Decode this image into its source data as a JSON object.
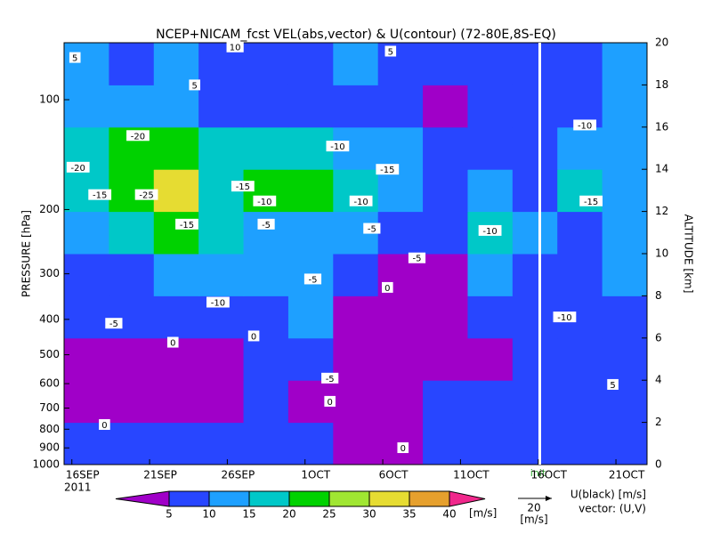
{
  "chart_data": {
    "type": "heatmap",
    "title": "NCEP+NICAM_fcst VEL(abs,vector) & U(contour)  (72-80E,8S-EQ)",
    "ylabel": "PRESSURE [hPa]",
    "y2label": "ALTITUDE [km]",
    "year_label": "2011",
    "xlim": [
      0.5,
      38
    ],
    "xticks": [
      {
        "value": 1,
        "label": "16SEP"
      },
      {
        "value": 6,
        "label": "21SEP"
      },
      {
        "value": 11,
        "label": "26SEP"
      },
      {
        "value": 16,
        "label": "1OCT"
      },
      {
        "value": 21,
        "label": "6OCT"
      },
      {
        "value": 26,
        "label": "11OCT"
      },
      {
        "value": 31,
        "label": "16OCT"
      },
      {
        "value": 36,
        "label": "21OCT"
      }
    ],
    "ylim": [
      1000,
      69.8
    ],
    "yscale": "log",
    "yticks": [
      100,
      200,
      300,
      400,
      500,
      600,
      700,
      800,
      900,
      1000
    ],
    "y2lim": [
      0,
      20
    ],
    "y2ticks": [
      0,
      2,
      4,
      6,
      8,
      10,
      12,
      14,
      16,
      18,
      20
    ],
    "init": {
      "x": 31.1,
      "label": "init"
    },
    "field": {
      "name": "VEL(abs)",
      "altitude_edges": [
        0,
        2,
        4,
        6,
        8,
        10,
        12,
        14,
        16,
        18,
        20
      ],
      "values": [
        [
          8,
          7,
          6,
          7,
          6,
          7,
          4,
          4,
          6,
          7,
          7,
          8,
          8
        ],
        [
          4,
          4,
          3,
          4,
          6,
          4,
          3,
          3,
          7,
          6,
          8,
          8,
          9
        ],
        [
          3,
          3,
          3,
          4,
          7,
          5,
          3,
          2,
          3,
          4,
          6,
          8,
          9
        ],
        [
          8,
          7,
          9,
          6,
          9,
          12,
          4,
          3,
          3,
          7,
          8,
          8,
          9
        ],
        [
          8,
          9,
          11,
          12,
          14,
          14,
          7,
          3,
          4,
          12,
          8,
          8,
          10
        ],
        [
          13,
          17,
          20,
          16,
          14,
          13,
          10,
          5,
          6,
          17,
          11,
          9,
          12
        ],
        [
          18,
          23,
          31,
          19,
          21,
          20,
          15,
          10,
          8,
          14,
          9,
          15,
          13
        ],
        [
          17,
          22,
          24,
          18,
          17,
          16,
          13,
          11,
          7,
          8,
          8,
          12,
          11
        ],
        [
          10,
          12,
          10,
          8,
          8,
          9,
          7,
          6,
          4,
          6,
          8,
          8,
          10
        ],
        [
          10,
          8,
          14,
          7,
          6,
          5,
          10,
          9,
          5,
          8,
          5,
          7,
          11
        ]
      ]
    },
    "colorbar": {
      "levels": [
        5,
        10,
        15,
        20,
        25,
        30,
        35,
        40
      ],
      "colors": [
        "#a000c8",
        "#2846ff",
        "#1ea0ff",
        "#00c8c8",
        "#00d200",
        "#a0e632",
        "#e6dc32",
        "#e6a02d",
        "#f0288c"
      ],
      "unit": "[m/s]"
    },
    "vector_legend": {
      "value": "20",
      "unit": "[m/s]"
    },
    "contour_legend": [
      "U(black) [m/s]",
      "vector: (U,V)"
    ],
    "contour_labels": [
      {
        "text": "-20",
        "x": 1.4,
        "y": 14.1
      },
      {
        "text": "-25",
        "x": 5.8,
        "y": 12.8
      },
      {
        "text": "-20",
        "x": 5.25,
        "y": 15.6
      },
      {
        "text": "-15",
        "x": 2.8,
        "y": 12.8
      },
      {
        "text": "-15",
        "x": 8.4,
        "y": 11.4
      },
      {
        "text": "-15",
        "x": 12,
        "y": 13.2
      },
      {
        "text": "-10",
        "x": 13.4,
        "y": 12.5
      },
      {
        "text": "-10",
        "x": 18.1,
        "y": 15.1
      },
      {
        "text": "-10",
        "x": 19.6,
        "y": 12.5
      },
      {
        "text": "-15",
        "x": 21.3,
        "y": 14.0
      },
      {
        "text": "-5",
        "x": 13.5,
        "y": 11.4
      },
      {
        "text": "-5",
        "x": 20.3,
        "y": 11.2
      },
      {
        "text": "-5",
        "x": 23.2,
        "y": 9.8
      },
      {
        "text": "-5",
        "x": 16.5,
        "y": 8.8
      },
      {
        "text": "0",
        "x": 21.3,
        "y": 8.4
      },
      {
        "text": "-10",
        "x": 27.9,
        "y": 11.1
      },
      {
        "text": "-10",
        "x": 10.4,
        "y": 7.7
      },
      {
        "text": "-5",
        "x": 3.7,
        "y": 6.7
      },
      {
        "text": "0",
        "x": 7.5,
        "y": 5.8
      },
      {
        "text": "0",
        "x": 12.7,
        "y": 6.1
      },
      {
        "text": "-5",
        "x": 17.6,
        "y": 4.1
      },
      {
        "text": "0",
        "x": 17.6,
        "y": 3.0
      },
      {
        "text": "0",
        "x": 3.1,
        "y": 1.9
      },
      {
        "text": "0",
        "x": 22.3,
        "y": 0.8
      },
      {
        "text": "5",
        "x": 1.2,
        "y": 19.3
      },
      {
        "text": "5",
        "x": 8.9,
        "y": 18.0
      },
      {
        "text": "5",
        "x": 21.5,
        "y": 19.6
      },
      {
        "text": "10",
        "x": 11.5,
        "y": 19.8
      },
      {
        "text": "-15",
        "x": 34.4,
        "y": 12.5
      },
      {
        "text": "-10",
        "x": 34,
        "y": 16.1
      },
      {
        "text": "-10",
        "x": 32.7,
        "y": 7.0
      },
      {
        "text": "5",
        "x": 35.8,
        "y": 3.8
      }
    ]
  }
}
